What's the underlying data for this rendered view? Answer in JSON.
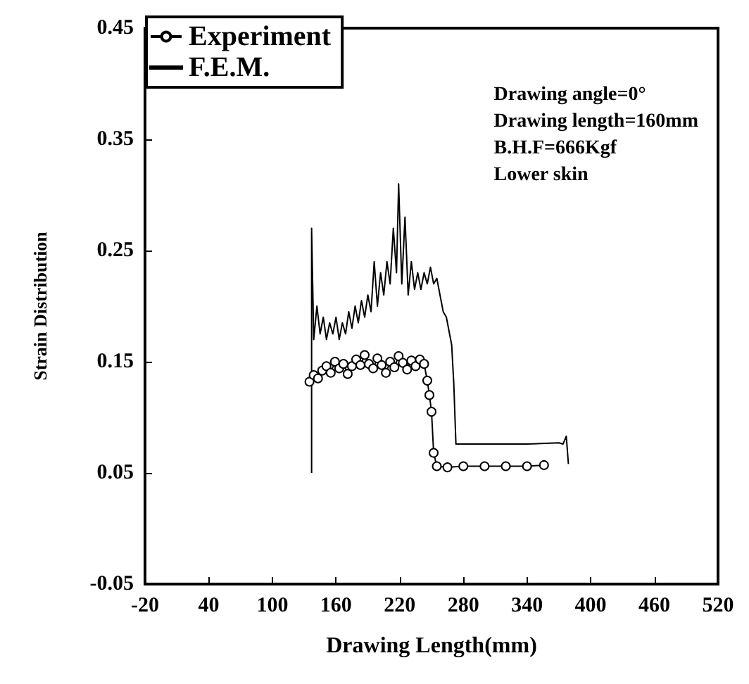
{
  "chart_data": {
    "type": "line",
    "xlabel": "Drawing Length(mm)",
    "ylabel": "Strain Distribution",
    "annotations": [
      "Drawing angle=0°",
      "Drawing length=160mm",
      "B.H.F=666Kgf",
      "Lower skin"
    ],
    "xlim": [
      -20,
      520
    ],
    "xticks": [
      -20,
      40,
      100,
      160,
      220,
      280,
      340,
      400,
      460,
      520
    ],
    "ylim": [
      -0.05,
      0.45
    ],
    "yticks": [
      -0.05,
      0.05,
      0.15,
      0.25,
      0.35,
      0.45
    ],
    "grid": false,
    "legend": "top left",
    "series": [
      {
        "name": "Experiment",
        "color": "#000000",
        "marker": "circle",
        "x": [
          135,
          139,
          143,
          147,
          151,
          155,
          159,
          163,
          167,
          171,
          175,
          179,
          183,
          187,
          191,
          195,
          199,
          203,
          207,
          211,
          215,
          219,
          223,
          227,
          231,
          235,
          239,
          243,
          246,
          248,
          250,
          252,
          255,
          265,
          280,
          300,
          320,
          340,
          356
        ],
        "values": [
          0.132,
          0.138,
          0.135,
          0.142,
          0.146,
          0.14,
          0.15,
          0.144,
          0.148,
          0.139,
          0.146,
          0.152,
          0.147,
          0.156,
          0.148,
          0.144,
          0.153,
          0.147,
          0.14,
          0.15,
          0.145,
          0.155,
          0.149,
          0.143,
          0.151,
          0.146,
          0.152,
          0.148,
          0.133,
          0.12,
          0.105,
          0.068,
          0.056,
          0.055,
          0.056,
          0.056,
          0.056,
          0.056,
          0.057
        ]
      },
      {
        "name": "F.E.M.",
        "color": "#000000",
        "marker": "none",
        "x": [
          137,
          137,
          139,
          142,
          145,
          148,
          151,
          154,
          157,
          160,
          163,
          166,
          169,
          172,
          175,
          178,
          181,
          184,
          187,
          190,
          193,
          196,
          199,
          202,
          205,
          208,
          211,
          214,
          217,
          219,
          222,
          225,
          228,
          231,
          234,
          237,
          240,
          243,
          246,
          249,
          252,
          255,
          258,
          261,
          264,
          267,
          269,
          271,
          273,
          300,
          340,
          370,
          374,
          377,
          379
        ],
        "values": [
          0.05,
          0.27,
          0.17,
          0.2,
          0.175,
          0.19,
          0.17,
          0.185,
          0.175,
          0.19,
          0.17,
          0.185,
          0.175,
          0.195,
          0.18,
          0.2,
          0.185,
          0.205,
          0.19,
          0.21,
          0.195,
          0.24,
          0.2,
          0.23,
          0.21,
          0.24,
          0.22,
          0.27,
          0.23,
          0.31,
          0.22,
          0.28,
          0.21,
          0.24,
          0.215,
          0.23,
          0.215,
          0.23,
          0.22,
          0.235,
          0.22,
          0.225,
          0.21,
          0.195,
          0.19,
          0.175,
          0.165,
          0.13,
          0.076,
          0.076,
          0.076,
          0.077,
          0.076,
          0.083,
          0.058
        ]
      }
    ]
  }
}
